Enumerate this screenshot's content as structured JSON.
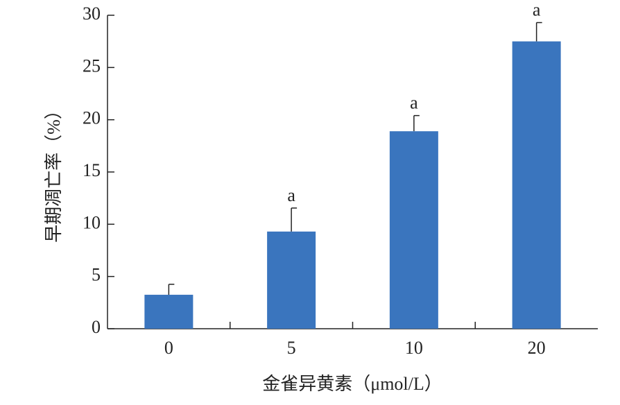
{
  "chart_data": {
    "type": "bar",
    "y_label": "早期凋亡率（%）",
    "x_label": "金雀异黄素（μmol/L）",
    "categories": [
      "0",
      "5",
      "10",
      "20"
    ],
    "values": [
      3.25,
      9.3,
      18.9,
      27.5
    ],
    "errors": [
      1.0,
      2.25,
      1.5,
      1.8
    ],
    "significance": [
      null,
      "a",
      "a",
      "a"
    ],
    "color": "#3a75be",
    "ylim": [
      0,
      30
    ],
    "yticks": [
      0,
      5,
      10,
      15,
      20,
      25,
      30
    ]
  }
}
